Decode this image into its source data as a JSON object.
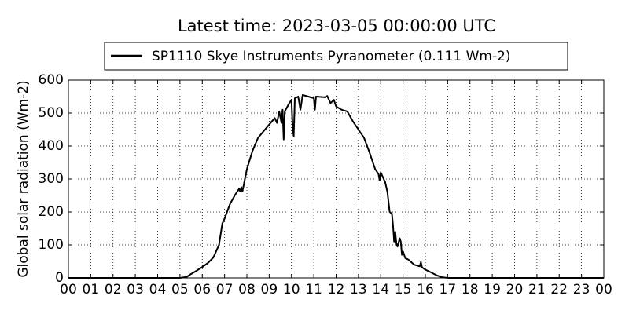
{
  "chart_data": {
    "type": "line",
    "title": "Latest time: 2023-03-05 00:00:00 UTC",
    "ylabel": "Global solar radiation (Wm-2)",
    "x": [
      0,
      5.0,
      5.3,
      5.5,
      5.75,
      6.0,
      6.25,
      6.5,
      6.75,
      6.9,
      7.0,
      7.25,
      7.5,
      7.65,
      7.7,
      7.75,
      7.8,
      8.0,
      8.25,
      8.5,
      8.75,
      9.0,
      9.25,
      9.35,
      9.45,
      9.55,
      9.6,
      9.65,
      9.7,
      9.9,
      10.0,
      10.05,
      10.1,
      10.15,
      10.3,
      10.4,
      10.5,
      10.75,
      11.0,
      11.05,
      11.1,
      11.5,
      11.6,
      11.75,
      11.9,
      12.0,
      12.25,
      12.5,
      12.75,
      13.0,
      13.25,
      13.5,
      13.75,
      13.9,
      13.95,
      14.0,
      14.2,
      14.3,
      14.4,
      14.5,
      14.55,
      14.6,
      14.65,
      14.7,
      14.75,
      14.85,
      14.9,
      14.95,
      15.0,
      15.1,
      15.25,
      15.5,
      15.75,
      15.8,
      15.85,
      16.0,
      16.25,
      16.5,
      16.75,
      17.0,
      24
    ],
    "series": [
      {
        "name": "SP1110 Skye Instruments Pyranometer (0.111 Wm-2)",
        "color": "#000000",
        "values": [
          0,
          0,
          3,
          12,
          22,
          33,
          45,
          62,
          100,
          165,
          180,
          225,
          255,
          270,
          262,
          275,
          262,
          330,
          385,
          425,
          445,
          465,
          485,
          470,
          505,
          470,
          510,
          420,
          505,
          530,
          540,
          455,
          430,
          545,
          550,
          510,
          555,
          550,
          545,
          510,
          550,
          548,
          552,
          530,
          540,
          520,
          510,
          505,
          475,
          450,
          425,
          380,
          330,
          315,
          295,
          320,
          290,
          260,
          200,
          195,
          160,
          110,
          140,
          105,
          95,
          120,
          110,
          70,
          80,
          60,
          55,
          40,
          35,
          48,
          32,
          25,
          17,
          8,
          2,
          0,
          0
        ]
      }
    ],
    "xlim": [
      0,
      24
    ],
    "xticks": [
      {
        "value": 0,
        "label": "00"
      },
      {
        "value": 1,
        "label": "01"
      },
      {
        "value": 2,
        "label": "02"
      },
      {
        "value": 3,
        "label": "03"
      },
      {
        "value": 4,
        "label": "04"
      },
      {
        "value": 5,
        "label": "05"
      },
      {
        "value": 6,
        "label": "06"
      },
      {
        "value": 7,
        "label": "07"
      },
      {
        "value": 8,
        "label": "08"
      },
      {
        "value": 9,
        "label": "09"
      },
      10,
      11,
      12,
      13,
      14,
      15,
      16,
      17,
      18,
      19,
      20,
      21,
      22,
      23,
      {
        "value": 24,
        "label": "00"
      }
    ],
    "ylim": [
      0,
      600
    ],
    "yticks": [
      0,
      100,
      200,
      300,
      400,
      500,
      600
    ],
    "grid": true,
    "legend": "upper center"
  }
}
